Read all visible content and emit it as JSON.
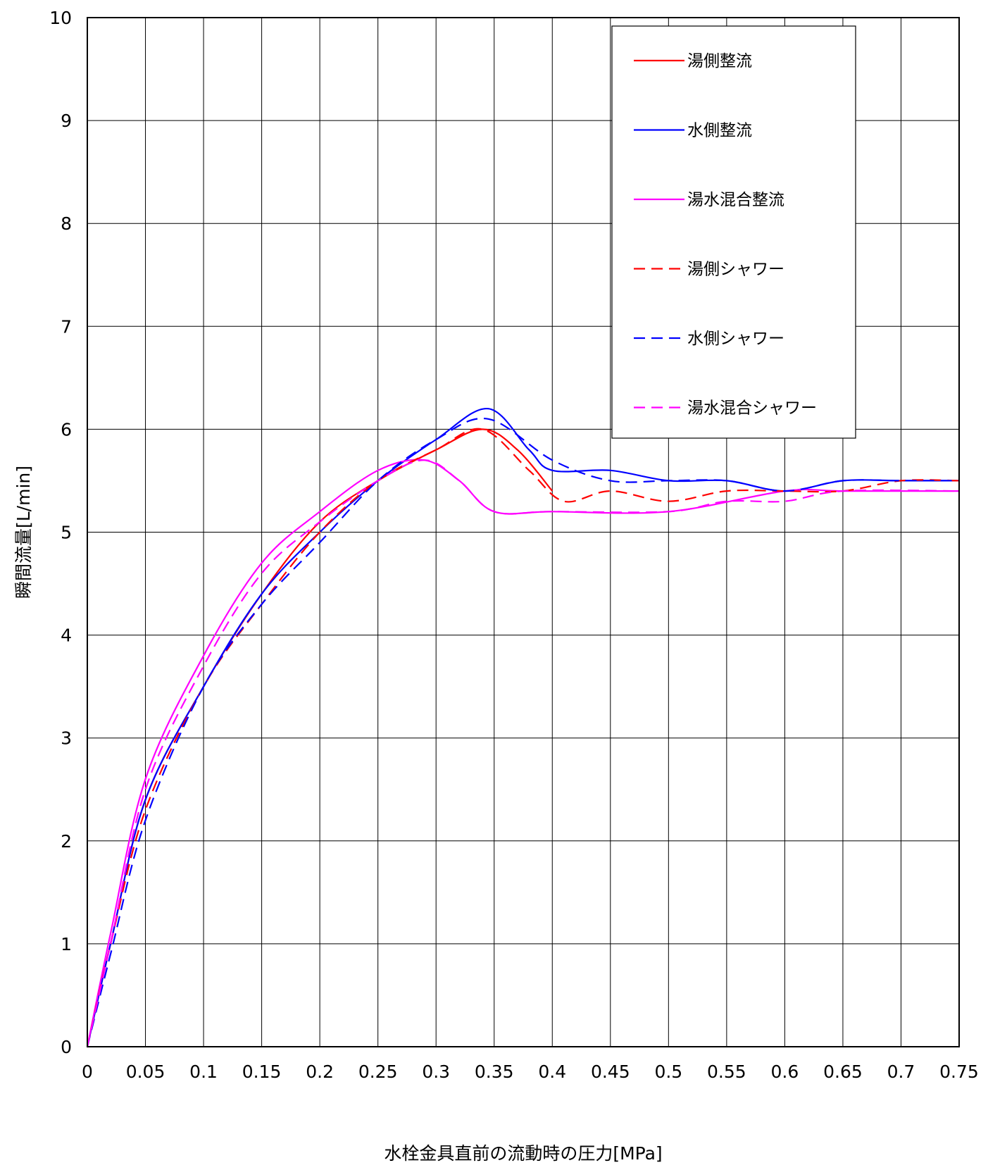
{
  "chart_data": {
    "type": "line",
    "title": "",
    "xlabel": "水栓金具直前の流動時の圧力[MPa]",
    "ylabel": "瞬間流量[L/min]",
    "xlim": [
      0,
      0.75
    ],
    "ylim": [
      0,
      10
    ],
    "grid": true,
    "legend_position": "top-right",
    "x_ticks": [
      "0",
      "0.05",
      "0.1",
      "0.15",
      "0.2",
      "0.25",
      "0.3",
      "0.35",
      "0.4",
      "0.45",
      "0.5",
      "0.55",
      "0.6",
      "0.65",
      "0.7",
      "0.75"
    ],
    "y_ticks": [
      "0",
      "1",
      "2",
      "3",
      "4",
      "5",
      "6",
      "7",
      "8",
      "9",
      "10"
    ],
    "series": [
      {
        "name": "湯側整流",
        "color": "#ff0000",
        "dash": "solid",
        "points": [
          [
            0,
            0
          ],
          [
            0.02,
            1.0
          ],
          [
            0.05,
            2.4
          ],
          [
            0.1,
            3.5
          ],
          [
            0.15,
            4.4
          ],
          [
            0.2,
            5.1
          ],
          [
            0.25,
            5.5
          ],
          [
            0.3,
            5.8
          ],
          [
            0.34,
            6.0
          ],
          [
            0.37,
            5.8
          ],
          [
            0.4,
            5.4
          ]
        ]
      },
      {
        "name": "水側整流",
        "color": "#0000ff",
        "dash": "solid",
        "points": [
          [
            0,
            0
          ],
          [
            0.02,
            1.0
          ],
          [
            0.05,
            2.4
          ],
          [
            0.1,
            3.5
          ],
          [
            0.15,
            4.4
          ],
          [
            0.2,
            5.0
          ],
          [
            0.25,
            5.5
          ],
          [
            0.3,
            5.9
          ],
          [
            0.345,
            6.2
          ],
          [
            0.38,
            5.8
          ],
          [
            0.4,
            5.6
          ],
          [
            0.45,
            5.6
          ],
          [
            0.5,
            5.5
          ],
          [
            0.55,
            5.5
          ],
          [
            0.6,
            5.4
          ],
          [
            0.65,
            5.5
          ],
          [
            0.7,
            5.5
          ],
          [
            0.75,
            5.5
          ]
        ]
      },
      {
        "name": "湯水混合整流",
        "color": "#ff00ff",
        "dash": "solid",
        "points": [
          [
            0,
            0
          ],
          [
            0.02,
            1.1
          ],
          [
            0.05,
            2.6
          ],
          [
            0.1,
            3.8
          ],
          [
            0.15,
            4.7
          ],
          [
            0.2,
            5.2
          ],
          [
            0.25,
            5.6
          ],
          [
            0.29,
            5.7
          ],
          [
            0.32,
            5.5
          ],
          [
            0.35,
            5.2
          ],
          [
            0.4,
            5.2
          ],
          [
            0.5,
            5.2
          ],
          [
            0.6,
            5.4
          ],
          [
            0.65,
            5.4
          ],
          [
            0.75,
            5.4
          ]
        ]
      },
      {
        "name": "湯側シャワー",
        "color": "#ff0000",
        "dash": "dashed",
        "points": [
          [
            0,
            0
          ],
          [
            0.02,
            1.0
          ],
          [
            0.05,
            2.3
          ],
          [
            0.1,
            3.5
          ],
          [
            0.15,
            4.3
          ],
          [
            0.2,
            5.0
          ],
          [
            0.25,
            5.5
          ],
          [
            0.3,
            5.8
          ],
          [
            0.34,
            6.0
          ],
          [
            0.38,
            5.6
          ],
          [
            0.41,
            5.3
          ],
          [
            0.45,
            5.4
          ],
          [
            0.5,
            5.3
          ],
          [
            0.55,
            5.4
          ],
          [
            0.6,
            5.4
          ],
          [
            0.65,
            5.4
          ],
          [
            0.7,
            5.5
          ],
          [
            0.75,
            5.5
          ]
        ]
      },
      {
        "name": "水側シャワー",
        "color": "#0000ff",
        "dash": "dashed",
        "points": [
          [
            0,
            0
          ],
          [
            0.02,
            0.9
          ],
          [
            0.05,
            2.2
          ],
          [
            0.1,
            3.5
          ],
          [
            0.15,
            4.3
          ],
          [
            0.2,
            4.9
          ],
          [
            0.25,
            5.5
          ],
          [
            0.3,
            5.9
          ],
          [
            0.345,
            6.1
          ],
          [
            0.4,
            5.7
          ],
          [
            0.45,
            5.5
          ],
          [
            0.5,
            5.5
          ],
          [
            0.55,
            5.5
          ],
          [
            0.6,
            5.4
          ],
          [
            0.65,
            5.5
          ],
          [
            0.7,
            5.5
          ],
          [
            0.75,
            5.5
          ]
        ]
      },
      {
        "name": "湯水混合シャワー",
        "color": "#ff00ff",
        "dash": "dashed",
        "points": [
          [
            0,
            0
          ],
          [
            0.02,
            1.0
          ],
          [
            0.05,
            2.5
          ],
          [
            0.1,
            3.7
          ],
          [
            0.15,
            4.6
          ],
          [
            0.2,
            5.1
          ],
          [
            0.25,
            5.5
          ],
          [
            0.29,
            5.7
          ],
          [
            0.32,
            5.5
          ],
          [
            0.35,
            5.2
          ],
          [
            0.4,
            5.2
          ],
          [
            0.5,
            5.2
          ],
          [
            0.55,
            5.3
          ],
          [
            0.6,
            5.3
          ],
          [
            0.65,
            5.4
          ],
          [
            0.75,
            5.4
          ]
        ]
      }
    ]
  }
}
